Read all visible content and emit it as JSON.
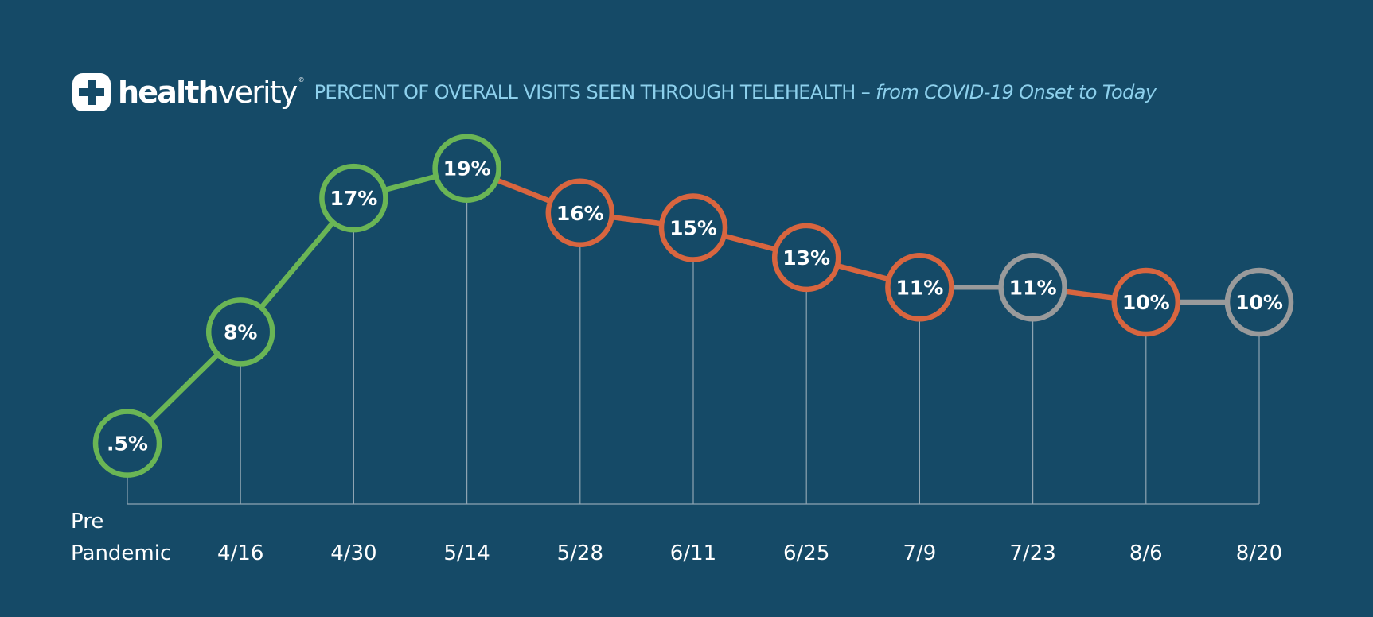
{
  "header": {
    "brand_bold": "health",
    "brand_light": "verity",
    "brand_registered": "®",
    "title": "PERCENT OF OVERALL VISITS SEEN THROUGH TELEHEALTH – ",
    "subtitle": "from COVID-19 Onset to Today"
  },
  "colors": {
    "background": "#154a67",
    "green": "#6ab555",
    "orange": "#d8653f",
    "gray": "#999a9b",
    "title_blue": "#8dd0ec",
    "axis": "#8ea4b2"
  },
  "chart_data": {
    "type": "line",
    "title": "PERCENT OF OVERALL VISITS SEEN THROUGH TELEHEALTH – from COVID-19 Onset to Today",
    "categories": [
      [
        "Pre",
        "Pandemic"
      ],
      "4/16",
      "4/30",
      "5/14",
      "5/28",
      "6/11",
      "6/25",
      "7/9",
      "7/23",
      "8/6",
      "8/20"
    ],
    "values": [
      0.5,
      8,
      17,
      19,
      16,
      15,
      13,
      11,
      11,
      10,
      10
    ],
    "labels": [
      ".5%",
      "8%",
      "17%",
      "19%",
      "16%",
      "15%",
      "13%",
      "11%",
      "11%",
      "10%",
      "10%"
    ],
    "trend": [
      "up",
      "up",
      "up",
      "up",
      "down",
      "down",
      "down",
      "down",
      "flat",
      "down",
      "flat"
    ],
    "ylim": [
      0,
      20
    ],
    "grid": false
  }
}
